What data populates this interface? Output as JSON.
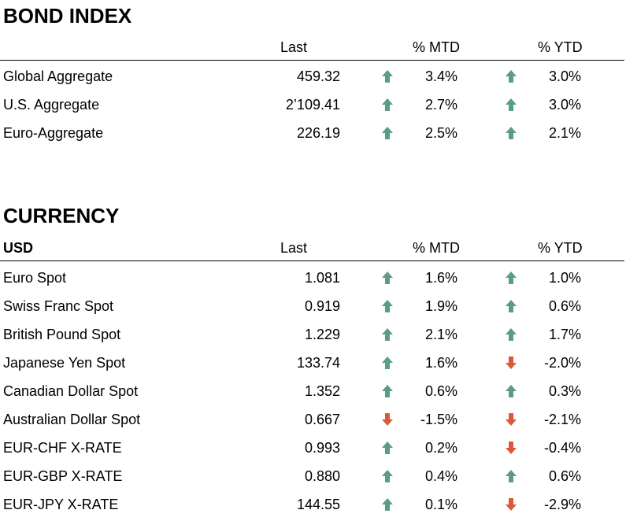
{
  "colors": {
    "up": "#5a9c85",
    "down": "#d9593a"
  },
  "bond": {
    "title": "BOND INDEX",
    "headers": {
      "name": "",
      "last": "Last",
      "mtd": "% MTD",
      "ytd": "% YTD"
    },
    "rows": [
      {
        "name": "Global Aggregate",
        "last": "459.32",
        "mtd_dir": "up",
        "mtd": "3.4%",
        "ytd_dir": "up",
        "ytd": "3.0%"
      },
      {
        "name": "U.S. Aggregate",
        "last": "2’109.41",
        "mtd_dir": "up",
        "mtd": "2.7%",
        "ytd_dir": "up",
        "ytd": "3.0%"
      },
      {
        "name": "Euro-Aggregate",
        "last": "226.19",
        "mtd_dir": "up",
        "mtd": "2.5%",
        "ytd_dir": "up",
        "ytd": "2.1%"
      }
    ]
  },
  "currency": {
    "title": "CURRENCY",
    "headers": {
      "name": "USD",
      "last": "Last",
      "mtd": "% MTD",
      "ytd": "% YTD"
    },
    "rows": [
      {
        "name": "Euro Spot",
        "last": "1.081",
        "mtd_dir": "up",
        "mtd": "1.6%",
        "ytd_dir": "up",
        "ytd": "1.0%"
      },
      {
        "name": "Swiss Franc Spot",
        "last": "0.919",
        "mtd_dir": "up",
        "mtd": "1.9%",
        "ytd_dir": "up",
        "ytd": "0.6%"
      },
      {
        "name": "British Pound Spot",
        "last": "1.229",
        "mtd_dir": "up",
        "mtd": "2.1%",
        "ytd_dir": "up",
        "ytd": "1.7%"
      },
      {
        "name": "Japanese Yen Spot",
        "last": "133.74",
        "mtd_dir": "up",
        "mtd": "1.6%",
        "ytd_dir": "down",
        "ytd": "-2.0%"
      },
      {
        "name": "Canadian Dollar Spot",
        "last": "1.352",
        "mtd_dir": "up",
        "mtd": "0.6%",
        "ytd_dir": "up",
        "ytd": "0.3%"
      },
      {
        "name": "Australian Dollar Spot",
        "last": "0.667",
        "mtd_dir": "down",
        "mtd": "-1.5%",
        "ytd_dir": "down",
        "ytd": "-2.1%"
      },
      {
        "name": "EUR-CHF X-RATE",
        "last": "0.993",
        "mtd_dir": "up",
        "mtd": "0.2%",
        "ytd_dir": "down",
        "ytd": "-0.4%"
      },
      {
        "name": "EUR-GBP X-RATE",
        "last": "0.880",
        "mtd_dir": "up",
        "mtd": "0.4%",
        "ytd_dir": "up",
        "ytd": "0.6%"
      },
      {
        "name": "EUR-JPY X-RATE",
        "last": "144.55",
        "mtd_dir": "up",
        "mtd": "0.1%",
        "ytd_dir": "down",
        "ytd": "-2.9%"
      }
    ]
  }
}
